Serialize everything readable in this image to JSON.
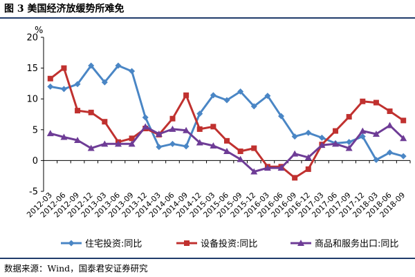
{
  "figure": {
    "title": "图 3 美国经济放缓势所难免",
    "source": "数据来源：Wind，国泰君安证券研究"
  },
  "chart_data": {
    "type": "line",
    "title": "",
    "xlabel": "",
    "ylabel": "%",
    "ylim": [
      -5,
      20
    ],
    "yticks": [
      -5,
      0,
      5,
      10,
      15,
      20
    ],
    "grid": false,
    "legend_position": "bottom",
    "categories": [
      "2012-03",
      "2012-06",
      "2012-09",
      "2012-12",
      "2013-03",
      "2013-06",
      "2013-09",
      "2013-12",
      "2014-03",
      "2014-06",
      "2014-09",
      "2014-12",
      "2015-03",
      "2015-06",
      "2015-09",
      "2015-12",
      "2016-03",
      "2016-06",
      "2016-09",
      "2016-12",
      "2017-03",
      "2017-06",
      "2017-09",
      "2017-12",
      "2018-03",
      "2018-06",
      "2018-09"
    ],
    "series": [
      {
        "name": "住宅投资:同比",
        "color": "#4a86c5",
        "marker": "diamond",
        "values": [
          12.0,
          11.6,
          12.4,
          15.4,
          12.7,
          15.4,
          14.5,
          7.0,
          2.2,
          2.7,
          2.3,
          7.6,
          10.6,
          9.8,
          11.2,
          8.8,
          10.5,
          7.2,
          3.9,
          4.5,
          3.7,
          2.8,
          3.0,
          3.9,
          0.1,
          1.3,
          0.7
        ]
      },
      {
        "name": "设备投资:同比",
        "color": "#c0312f",
        "marker": "square",
        "values": [
          13.3,
          15.0,
          8.1,
          7.8,
          6.3,
          3.0,
          3.6,
          5.2,
          4.2,
          6.8,
          10.6,
          5.1,
          5.5,
          3.2,
          1.5,
          2.0,
          -1.0,
          -1.0,
          -2.8,
          -1.4,
          2.6,
          4.8,
          7.1,
          9.6,
          9.4,
          8.0,
          6.5
        ]
      },
      {
        "name": "商品和服务出口:同比",
        "color": "#6e3c96",
        "marker": "triangle",
        "values": [
          4.4,
          3.8,
          3.3,
          2.0,
          2.7,
          2.7,
          2.7,
          5.5,
          4.3,
          5.1,
          4.9,
          2.9,
          2.4,
          1.5,
          0.2,
          -1.8,
          -1.2,
          -1.2,
          1.1,
          0.5,
          2.5,
          2.7,
          2.0,
          4.8,
          4.3,
          5.7,
          3.6
        ]
      }
    ]
  }
}
